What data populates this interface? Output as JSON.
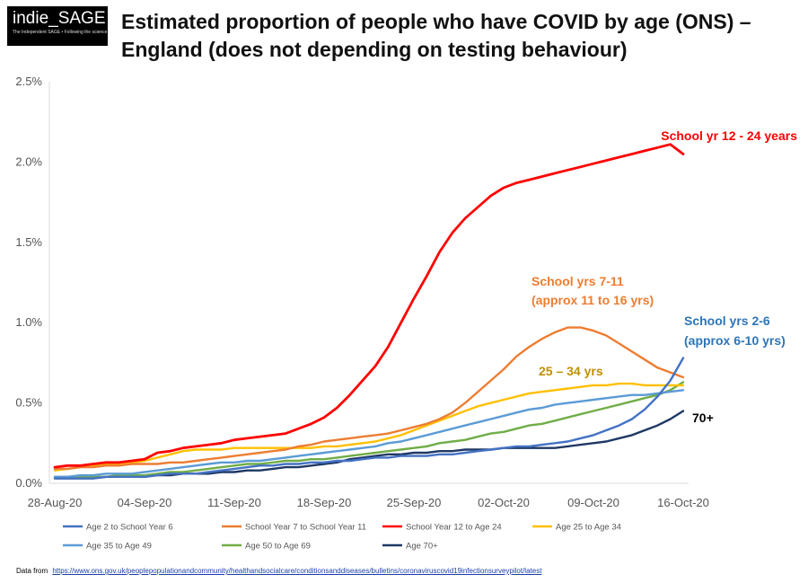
{
  "logo": {
    "main": "indie_SAGE",
    "tagline": "The Independent SAGE • Following the science"
  },
  "title": "Estimated proportion of people who have COVID by age (ONS) – England (does not depending on testing behaviour)",
  "source": {
    "prefix": "Data from",
    "url": "https://www.ons.gov.uk/peoplepopulationandcommunity/healthandsocialcare/conditionsanddiseases/bulletins/coronaviruscovid19infectionsurveypilot/latest"
  },
  "chart_data": {
    "type": "line",
    "title": "Estimated proportion of people who have COVID by age (ONS) – England (does not depending on testing behaviour)",
    "xlabel": "",
    "ylabel": "",
    "x": [
      "28-Aug-20",
      "29-Aug-20",
      "30-Aug-20",
      "31-Aug-20",
      "01-Sep-20",
      "02-Sep-20",
      "03-Sep-20",
      "04-Sep-20",
      "05-Sep-20",
      "06-Sep-20",
      "07-Sep-20",
      "08-Sep-20",
      "09-Sep-20",
      "10-Sep-20",
      "11-Sep-20",
      "12-Sep-20",
      "13-Sep-20",
      "14-Sep-20",
      "15-Sep-20",
      "16-Sep-20",
      "17-Sep-20",
      "18-Sep-20",
      "19-Sep-20",
      "20-Sep-20",
      "21-Sep-20",
      "22-Sep-20",
      "23-Sep-20",
      "24-Sep-20",
      "25-Sep-20",
      "26-Sep-20",
      "27-Sep-20",
      "28-Sep-20",
      "29-Sep-20",
      "30-Sep-20",
      "01-Oct-20",
      "02-Oct-20",
      "03-Oct-20",
      "04-Oct-20",
      "05-Oct-20",
      "06-Oct-20",
      "07-Oct-20",
      "08-Oct-20",
      "09-Oct-20",
      "10-Oct-20",
      "11-Oct-20",
      "12-Oct-20",
      "13-Oct-20",
      "14-Oct-20",
      "15-Oct-20",
      "16-Oct-20"
    ],
    "x_ticks": [
      "28-Aug-20",
      "04-Sep-20",
      "11-Sep-20",
      "18-Sep-20",
      "25-Sep-20",
      "02-Oct-20",
      "09-Oct-20",
      "16-Oct-20"
    ],
    "y_ticks": [
      "0.0%",
      "0.5%",
      "1.0%",
      "1.5%",
      "2.0%",
      "2.5%"
    ],
    "ylim": [
      0,
      2.5
    ],
    "y_unit": "%",
    "series": [
      {
        "name": "Age 2 to School Year 6",
        "color": "#4472c4",
        "values": [
          0.03,
          0.03,
          0.03,
          0.03,
          0.04,
          0.04,
          0.04,
          0.04,
          0.05,
          0.06,
          0.06,
          0.06,
          0.07,
          0.08,
          0.09,
          0.1,
          0.11,
          0.11,
          0.12,
          0.12,
          0.13,
          0.13,
          0.14,
          0.14,
          0.15,
          0.16,
          0.16,
          0.17,
          0.17,
          0.17,
          0.18,
          0.18,
          0.19,
          0.2,
          0.21,
          0.22,
          0.23,
          0.23,
          0.24,
          0.25,
          0.26,
          0.28,
          0.3,
          0.33,
          0.36,
          0.4,
          0.46,
          0.54,
          0.64,
          0.78
        ]
      },
      {
        "name": "School Year 7 to School Year 11",
        "color": "#ed7d31",
        "values": [
          0.09,
          0.09,
          0.1,
          0.1,
          0.11,
          0.11,
          0.12,
          0.12,
          0.12,
          0.13,
          0.13,
          0.14,
          0.15,
          0.16,
          0.17,
          0.18,
          0.19,
          0.2,
          0.21,
          0.23,
          0.24,
          0.26,
          0.27,
          0.28,
          0.29,
          0.3,
          0.31,
          0.33,
          0.35,
          0.37,
          0.4,
          0.44,
          0.5,
          0.57,
          0.64,
          0.71,
          0.79,
          0.85,
          0.9,
          0.94,
          0.97,
          0.97,
          0.95,
          0.92,
          0.87,
          0.82,
          0.77,
          0.72,
          0.69,
          0.66
        ]
      },
      {
        "name": "School Year 12 to Age 24",
        "color": "#ff0000",
        "values": [
          0.1,
          0.11,
          0.11,
          0.12,
          0.13,
          0.13,
          0.14,
          0.15,
          0.19,
          0.2,
          0.22,
          0.23,
          0.24,
          0.25,
          0.27,
          0.28,
          0.29,
          0.3,
          0.31,
          0.34,
          0.37,
          0.41,
          0.47,
          0.55,
          0.64,
          0.73,
          0.85,
          1.0,
          1.15,
          1.29,
          1.44,
          1.56,
          1.65,
          1.72,
          1.79,
          1.84,
          1.87,
          1.89,
          1.91,
          1.93,
          1.95,
          1.97,
          1.99,
          2.01,
          2.03,
          2.05,
          2.07,
          2.09,
          2.11,
          2.05
        ]
      },
      {
        "name": "Age 25 to Age 34",
        "color": "#ffc000",
        "values": [
          0.08,
          0.09,
          0.1,
          0.11,
          0.12,
          0.12,
          0.13,
          0.14,
          0.16,
          0.18,
          0.2,
          0.21,
          0.21,
          0.21,
          0.22,
          0.22,
          0.22,
          0.22,
          0.22,
          0.22,
          0.22,
          0.23,
          0.23,
          0.24,
          0.25,
          0.26,
          0.28,
          0.3,
          0.33,
          0.36,
          0.39,
          0.42,
          0.45,
          0.48,
          0.5,
          0.52,
          0.54,
          0.56,
          0.57,
          0.58,
          0.59,
          0.6,
          0.61,
          0.61,
          0.62,
          0.62,
          0.61,
          0.61,
          0.61,
          0.61
        ]
      },
      {
        "name": "Age 35 to Age 49",
        "color": "#5b9bd5",
        "values": [
          0.04,
          0.04,
          0.05,
          0.05,
          0.06,
          0.06,
          0.06,
          0.07,
          0.08,
          0.09,
          0.1,
          0.11,
          0.12,
          0.13,
          0.13,
          0.14,
          0.14,
          0.15,
          0.16,
          0.17,
          0.18,
          0.19,
          0.2,
          0.21,
          0.22,
          0.23,
          0.25,
          0.26,
          0.28,
          0.3,
          0.32,
          0.34,
          0.36,
          0.38,
          0.4,
          0.42,
          0.44,
          0.46,
          0.47,
          0.49,
          0.5,
          0.51,
          0.52,
          0.53,
          0.54,
          0.55,
          0.55,
          0.56,
          0.57,
          0.58
        ]
      },
      {
        "name": "Age 50 to Age 69",
        "color": "#70ad47",
        "values": [
          0.04,
          0.04,
          0.04,
          0.04,
          0.04,
          0.05,
          0.05,
          0.05,
          0.06,
          0.07,
          0.07,
          0.08,
          0.09,
          0.1,
          0.11,
          0.12,
          0.12,
          0.13,
          0.14,
          0.14,
          0.15,
          0.15,
          0.16,
          0.17,
          0.18,
          0.19,
          0.2,
          0.21,
          0.22,
          0.23,
          0.25,
          0.26,
          0.27,
          0.29,
          0.31,
          0.32,
          0.34,
          0.36,
          0.37,
          0.39,
          0.41,
          0.43,
          0.45,
          0.47,
          0.49,
          0.51,
          0.53,
          0.55,
          0.58,
          0.63
        ]
      },
      {
        "name": "Age 70+",
        "color": "#1f3864",
        "values": [
          0.03,
          0.03,
          0.03,
          0.03,
          0.04,
          0.04,
          0.04,
          0.04,
          0.05,
          0.05,
          0.06,
          0.06,
          0.06,
          0.07,
          0.07,
          0.08,
          0.08,
          0.09,
          0.1,
          0.1,
          0.11,
          0.12,
          0.13,
          0.15,
          0.16,
          0.17,
          0.18,
          0.18,
          0.19,
          0.19,
          0.2,
          0.2,
          0.21,
          0.21,
          0.21,
          0.22,
          0.22,
          0.22,
          0.22,
          0.22,
          0.23,
          0.24,
          0.25,
          0.26,
          0.28,
          0.3,
          0.33,
          0.36,
          0.4,
          0.45
        ]
      }
    ],
    "annotations": [
      {
        "text": "School yr 12 - 24 years",
        "color": "#ff0000"
      },
      {
        "text": "School yrs 7-11",
        "color": "#ed7d31"
      },
      {
        "text": "(approx 11 to 16 yrs)",
        "color": "#ed7d31"
      },
      {
        "text": "School yrs 2-6",
        "color": "#2e75b6"
      },
      {
        "text": "(approx 6-10 yrs)",
        "color": "#2e75b6"
      },
      {
        "text": "25 – 34 yrs",
        "color": "#bf9000"
      },
      {
        "text": "70+",
        "color": "#000000"
      }
    ],
    "legend_position": "bottom"
  }
}
